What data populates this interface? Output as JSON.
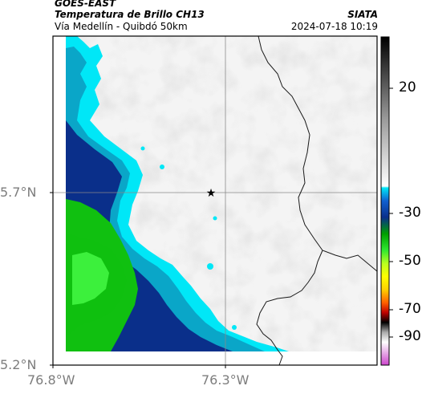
{
  "header": {
    "satellite": "GOES-EAST",
    "product": "Temperatura de Brillo CH13",
    "region": "Vía Medellín - Quibdó 50km",
    "agency": "SIATA",
    "datetime": "2024-07-18 10:19"
  },
  "map": {
    "lat_ticks": [
      "5.7°N",
      "5.2°N"
    ],
    "lon_ticks": [
      "76.8°W",
      "76.3°W"
    ],
    "marker": "star-marker",
    "colors": {
      "cloud_light": "#f4f4f4",
      "cloud_mid": "#cfcfcf",
      "cyan": "#00e7f7",
      "teal": "#0aa6c8",
      "navy": "#0a2f8a",
      "green": "#10c010",
      "lime": "#3cf03c"
    }
  },
  "colorbar": {
    "labels": [
      "20",
      "-30",
      "-50",
      "-70",
      "-90"
    ]
  }
}
